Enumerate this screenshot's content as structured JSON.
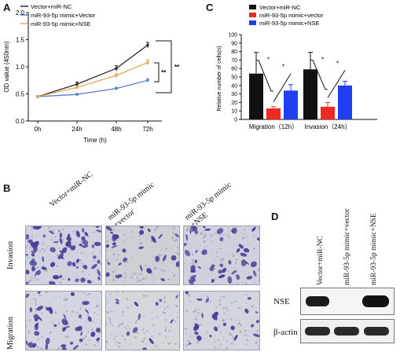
{
  "panels": {
    "A": "A",
    "B": "B",
    "C": "C",
    "D": "D"
  },
  "chartA": {
    "type": "line",
    "legend": [
      "Vector+miR-NC",
      "miR-93-5p mimic+Vector",
      "miR-93-5p mimic+NSE"
    ],
    "ylabel": "OD value (450nm)",
    "xlabel": "Time (h)",
    "yticks": [
      "0.0",
      "0.5",
      "1.0",
      "1.5",
      "2.0"
    ],
    "xticks": [
      "0h",
      "24h",
      "48h",
      "72h"
    ],
    "sig_inner": "**",
    "sig_outer": "**"
  },
  "chartC": {
    "type": "bar",
    "legend": [
      "Vector+miR-NC",
      "miR-93-5p mimic+vector",
      "miR-93-5p mimic+NSE"
    ],
    "ylabel": "Relative number of cells(n)",
    "yticks": [
      "0",
      "10",
      "20",
      "30",
      "40",
      "50",
      "60",
      "70",
      "80",
      "90",
      "100"
    ],
    "categories": [
      "Migration（12h）",
      "Invasion（24h）"
    ],
    "sig": "*"
  },
  "panelB": {
    "columns": [
      "Vector+miR-NC",
      "miR-93-5p mimic\n+vector",
      "miR-93-5p mimic\n+NSE"
    ],
    "rows": [
      "Invasion",
      "Migration"
    ]
  },
  "panelD": {
    "columns": [
      "Vector+miR-NC",
      "miR-93-5p mimic+vector",
      "miR-93-5p mimic+NSE"
    ],
    "rows": [
      "NSE",
      "β-actin"
    ]
  },
  "chart_data": [
    {
      "type": "line",
      "x": [
        0,
        24,
        48,
        72
      ],
      "xlabel": "Time (h)",
      "ylabel": "OD value (450nm)",
      "ylim": [
        0,
        2.0
      ],
      "series": [
        {
          "name": "Vector+miR-NC",
          "values": [
            0.45,
            0.68,
            0.97,
            1.4
          ],
          "errors": [
            0.02,
            0.04,
            0.05,
            0.05
          ],
          "color": "#2b2b2b"
        },
        {
          "name": "miR-93-5p mimic+Vector",
          "values": [
            0.45,
            0.49,
            0.6,
            0.75
          ],
          "errors": [
            0.02,
            0.02,
            0.02,
            0.03
          ],
          "color": "#5b7ed0"
        },
        {
          "name": "miR-93-5p mimic+NSE",
          "values": [
            0.45,
            0.62,
            0.84,
            1.08
          ],
          "errors": [
            0.02,
            0.03,
            0.04,
            0.05
          ],
          "color": "#e0a85a"
        }
      ]
    },
    {
      "type": "bar",
      "categories": [
        "Migration（12h）",
        "Invasion（24h）"
      ],
      "ylabel": "Relative number of cells(n)",
      "ylim": [
        0,
        100
      ],
      "series": [
        {
          "name": "Vector+miR-NC",
          "values": [
            54,
            59
          ],
          "errors": [
            25,
            20
          ],
          "color": "#111111"
        },
        {
          "name": "miR-93-5p mimic+vector",
          "values": [
            13,
            15
          ],
          "errors": [
            2,
            5
          ],
          "color": "#ee2a22"
        },
        {
          "name": "miR-93-5p mimic+NSE",
          "values": [
            34,
            40
          ],
          "errors": [
            7,
            5
          ],
          "color": "#1f3ff0"
        }
      ]
    }
  ]
}
